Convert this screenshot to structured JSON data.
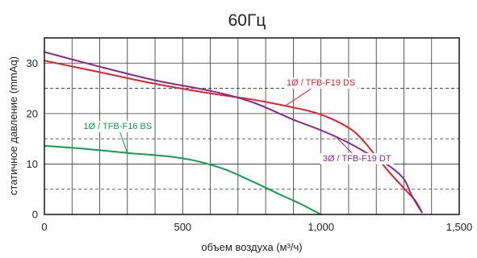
{
  "chart_data": {
    "type": "line",
    "title": "60Гц",
    "xlabel": "объем воздуха (м³/ч)",
    "ylabel": "статичное давление (mmAq)",
    "xlim": [
      0,
      1500
    ],
    "ylim": [
      0,
      35
    ],
    "x_ticks": [
      0,
      500,
      1000,
      1500
    ],
    "x_tick_labels": [
      "0",
      "500",
      "1,000",
      "1,500"
    ],
    "y_ticks": [
      0,
      10,
      20,
      30
    ],
    "y_tick_labels": [
      "0",
      "10",
      "20",
      "30"
    ],
    "grid": true,
    "series": [
      {
        "name": "1Ø / TFB-F19 DS",
        "color": "#e8202a",
        "x": [
          0,
          200,
          400,
          600,
          750,
          900,
          1000,
          1100,
          1150,
          1200,
          1250,
          1300,
          1340,
          1365
        ],
        "y": [
          30.5,
          28.2,
          25.9,
          24.0,
          22.8,
          21.2,
          19.8,
          17.2,
          14.8,
          11.5,
          8.2,
          5.2,
          2.8,
          0.5
        ]
      },
      {
        "name": "3Ø / TFB-F19 DT",
        "color": "#8a2a8e",
        "x": [
          0,
          200,
          400,
          600,
          750,
          900,
          1000,
          1100,
          1200,
          1250,
          1300,
          1330,
          1365
        ],
        "y": [
          32.2,
          29.3,
          26.6,
          24.5,
          22.3,
          18.8,
          16.7,
          14.2,
          11.1,
          9.5,
          7.0,
          3.6,
          0.4
        ]
      },
      {
        "name": "1Ø / TFB-F16 BS",
        "color": "#12a14b",
        "x": [
          0,
          150,
          300,
          450,
          550,
          650,
          750,
          850,
          930,
          1000
        ],
        "y": [
          13.6,
          13.0,
          12.2,
          11.5,
          10.6,
          9.0,
          6.6,
          4.0,
          2.0,
          0
        ]
      }
    ],
    "labels": [
      {
        "text": "1Ø / TFB-F19 DS",
        "series": 0,
        "box_x": 1000,
        "box_y": 26.2,
        "anchor_x": 870,
        "anchor_y": 21.5
      },
      {
        "text": "3Ø / TFB-F19 DT",
        "series": 1,
        "box_x": 1130,
        "box_y": 11.2,
        "anchor_x": 1050,
        "anchor_y": 15.6
      },
      {
        "text": "1Ø / TFB-F16 BS",
        "series": 2,
        "box_x": 265,
        "box_y": 17.6,
        "anchor_x": 300,
        "anchor_y": 12.2
      }
    ]
  }
}
